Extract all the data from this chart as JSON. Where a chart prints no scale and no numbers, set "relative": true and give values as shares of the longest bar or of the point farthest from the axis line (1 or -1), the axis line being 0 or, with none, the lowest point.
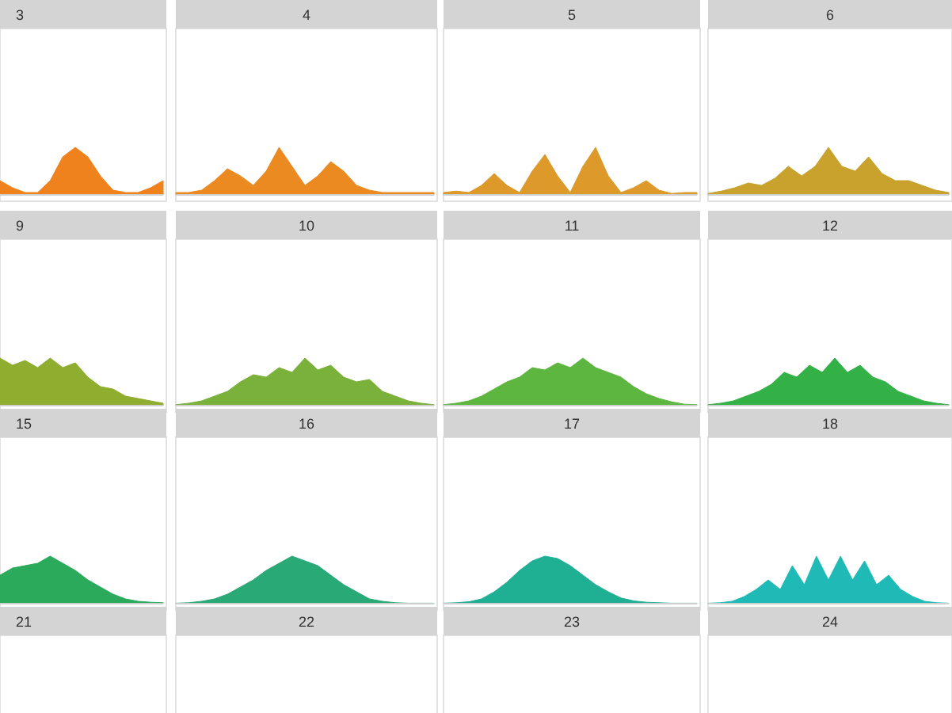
{
  "chart_data": [
    {
      "type": "area",
      "title": "3",
      "relative": true,
      "color": "#f0821e",
      "categories": [
        null,
        null,
        null,
        null,
        null,
        null,
        null,
        null,
        null,
        null,
        null,
        null,
        null,
        null
      ],
      "values": [
        0.3,
        0.15,
        0.05,
        0.05,
        0.3,
        0.8,
        1,
        0.8,
        0.4,
        0.1,
        0.05,
        0.05,
        0.15,
        0.3
      ]
    },
    {
      "type": "area",
      "title": "4",
      "relative": true,
      "color": "#ec8a22",
      "categories": [
        null,
        null,
        null,
        null,
        null,
        null,
        null,
        null,
        null,
        null,
        null,
        null,
        null,
        null,
        null,
        null,
        null,
        null,
        null,
        null,
        null
      ],
      "values": [
        0.05,
        0.05,
        0.1,
        0.3,
        0.55,
        0.4,
        0.2,
        0.5,
        1,
        0.6,
        0.2,
        0.4,
        0.7,
        0.5,
        0.2,
        0.1,
        0.05,
        0.05,
        0.05,
        0.05,
        0.05
      ]
    },
    {
      "type": "area",
      "title": "5",
      "relative": true,
      "color": "#dd9a2a",
      "categories": [
        null,
        null,
        null,
        null,
        null,
        null,
        null,
        null,
        null,
        null,
        null,
        null,
        null,
        null,
        null,
        null,
        null,
        null,
        null,
        null,
        null
      ],
      "values": [
        0.05,
        0.08,
        0.05,
        0.2,
        0.45,
        0.2,
        0.05,
        0.5,
        0.85,
        0.4,
        0.05,
        0.6,
        1,
        0.4,
        0.05,
        0.15,
        0.3,
        0.1,
        0.03,
        0.05,
        0.05
      ]
    },
    {
      "type": "area",
      "title": "6",
      "relative": true,
      "color": "#c9a22e",
      "categories": [
        null,
        null,
        null,
        null,
        null,
        null,
        null,
        null,
        null,
        null,
        null,
        null,
        null,
        null,
        null,
        null,
        null,
        null,
        null
      ],
      "values": [
        0.03,
        0.08,
        0.15,
        0.25,
        0.2,
        0.35,
        0.6,
        0.4,
        0.6,
        1,
        0.6,
        0.5,
        0.8,
        0.45,
        0.3,
        0.3,
        0.2,
        0.1,
        0.05
      ]
    },
    {
      "type": "area",
      "title": "9",
      "relative": true,
      "color": "#8fad2e",
      "categories": [
        null,
        null,
        null,
        null,
        null,
        null,
        null,
        null,
        null,
        null,
        null,
        null,
        null,
        null
      ],
      "values": [
        1,
        0.85,
        0.95,
        0.8,
        1,
        0.8,
        0.9,
        0.6,
        0.4,
        0.35,
        0.2,
        0.15,
        0.1,
        0.05
      ]
    },
    {
      "type": "area",
      "title": "10",
      "relative": true,
      "color": "#7ab13a",
      "categories": [
        null,
        null,
        null,
        null,
        null,
        null,
        null,
        null,
        null,
        null,
        null,
        null,
        null,
        null,
        null,
        null,
        null,
        null,
        null,
        null,
        null
      ],
      "values": [
        0.02,
        0.05,
        0.1,
        0.2,
        0.3,
        0.5,
        0.65,
        0.6,
        0.8,
        0.7,
        1,
        0.75,
        0.85,
        0.6,
        0.5,
        0.55,
        0.3,
        0.2,
        0.1,
        0.05,
        0.02
      ]
    },
    {
      "type": "area",
      "title": "11",
      "relative": true,
      "color": "#5cb63f",
      "categories": [
        null,
        null,
        null,
        null,
        null,
        null,
        null,
        null,
        null,
        null,
        null,
        null,
        null,
        null,
        null,
        null,
        null,
        null,
        null,
        null,
        null
      ],
      "values": [
        0.02,
        0.05,
        0.1,
        0.2,
        0.35,
        0.5,
        0.6,
        0.8,
        0.75,
        0.9,
        0.8,
        1,
        0.8,
        0.7,
        0.6,
        0.4,
        0.25,
        0.15,
        0.08,
        0.03,
        0.02
      ]
    },
    {
      "type": "area",
      "title": "12",
      "relative": true,
      "color": "#34b146",
      "categories": [
        null,
        null,
        null,
        null,
        null,
        null,
        null,
        null,
        null,
        null,
        null,
        null,
        null,
        null,
        null,
        null,
        null,
        null,
        null,
        null
      ],
      "values": [
        0.02,
        0.05,
        0.1,
        0.2,
        0.3,
        0.45,
        0.7,
        0.6,
        0.85,
        0.7,
        1,
        0.7,
        0.85,
        0.6,
        0.5,
        0.3,
        0.2,
        0.1,
        0.05,
        0.02
      ]
    },
    {
      "type": "area",
      "title": "15",
      "relative": true,
      "color": "#2aaa5a",
      "categories": [
        null,
        null,
        null,
        null,
        null,
        null,
        null,
        null,
        null,
        null,
        null,
        null,
        null,
        null
      ],
      "values": [
        0.6,
        0.75,
        0.8,
        0.85,
        1,
        0.85,
        0.7,
        0.5,
        0.35,
        0.2,
        0.1,
        0.05,
        0.03,
        0.02
      ]
    },
    {
      "type": "area",
      "title": "16",
      "relative": true,
      "color": "#28a975",
      "categories": [
        null,
        null,
        null,
        null,
        null,
        null,
        null,
        null,
        null,
        null,
        null,
        null,
        null,
        null,
        null,
        null,
        null,
        null,
        null,
        null,
        null
      ],
      "values": [
        0.01,
        0.02,
        0.05,
        0.1,
        0.2,
        0.35,
        0.5,
        0.7,
        0.85,
        1,
        0.9,
        0.8,
        0.6,
        0.4,
        0.25,
        0.1,
        0.05,
        0.02,
        0.01,
        0.01,
        0.01
      ]
    },
    {
      "type": "area",
      "title": "17",
      "relative": true,
      "color": "#1fb094",
      "categories": [
        null,
        null,
        null,
        null,
        null,
        null,
        null,
        null,
        null,
        null,
        null,
        null,
        null,
        null,
        null,
        null,
        null,
        null,
        null,
        null,
        null
      ],
      "values": [
        0.01,
        0.02,
        0.04,
        0.1,
        0.25,
        0.45,
        0.7,
        0.9,
        1,
        0.95,
        0.8,
        0.6,
        0.4,
        0.25,
        0.12,
        0.06,
        0.03,
        0.02,
        0.01,
        0.01,
        0.01
      ]
    },
    {
      "type": "area",
      "title": "18",
      "relative": true,
      "color": "#1fbab5",
      "categories": [
        null,
        null,
        null,
        null,
        null,
        null,
        null,
        null,
        null,
        null,
        null,
        null,
        null,
        null,
        null,
        null,
        null,
        null,
        null,
        null,
        null
      ],
      "values": [
        0.01,
        0.02,
        0.05,
        0.15,
        0.3,
        0.5,
        0.3,
        0.8,
        0.4,
        1,
        0.5,
        1,
        0.5,
        0.9,
        0.4,
        0.6,
        0.3,
        0.15,
        0.05,
        0.02,
        0.01
      ]
    },
    {
      "type": "other",
      "title": "21"
    },
    {
      "type": "other",
      "title": "22"
    },
    {
      "type": "other",
      "title": "23"
    },
    {
      "type": "other",
      "title": "24"
    }
  ]
}
